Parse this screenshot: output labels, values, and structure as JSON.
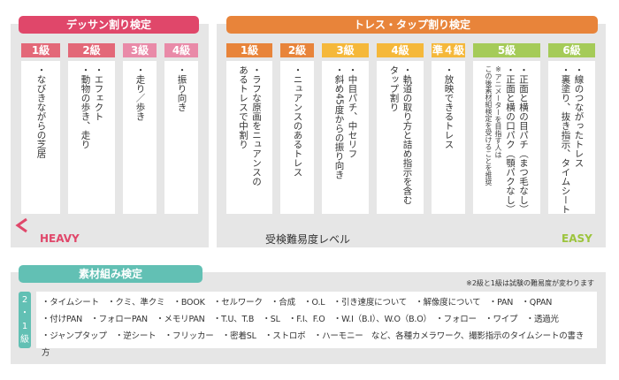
{
  "dessin": {
    "title": "デッサン割り検定",
    "color": "#e0476a",
    "levels": [
      {
        "label": "1級",
        "color": "#e36878",
        "lines": [
          "・なびきながらの芝居"
        ]
      },
      {
        "label": "2級",
        "color": "#e36878",
        "lines": [
          "・エフェクト",
          "・動物の歩き、走り"
        ]
      },
      {
        "label": "3級",
        "color": "#e98aa8",
        "lines": [
          "・走り／歩き"
        ]
      },
      {
        "label": "4級",
        "color": "#e98aa8",
        "lines": [
          "・振り向き"
        ]
      }
    ]
  },
  "trace": {
    "title": "トレス・タップ割り検定",
    "color": "#e8843a",
    "levels": [
      {
        "label": "1級",
        "color": "#e8843a",
        "lines": [
          "・ラフな原画をニュアンスの",
          "あるトレスで中割り"
        ]
      },
      {
        "label": "2級",
        "color": "#e8843a",
        "lines": [
          "・ニュアンスのあるトレス"
        ]
      },
      {
        "label": "3級",
        "color": "#f5b83a",
        "lines": [
          "・中目パチ、中セリフ",
          "・斜め45度からの振り向き"
        ]
      },
      {
        "label": "4級",
        "color": "#f5b83a",
        "lines": [
          "・軌道の取り方と詰め指示を含む",
          "タップ割り"
        ]
      },
      {
        "label": "準４級",
        "color": "#f5b83a",
        "lines": [
          "・放映できるトレス"
        ]
      },
      {
        "label": "5級",
        "color": "#a5cb58",
        "lines": [
          "・正面と横の目パチ（まつ毛なし）",
          "・正面と横の口パク（顎パクなし）"
        ],
        "note": [
          "※アニメーターを目指す人は",
          "この後素材組検定を受けることを推奨"
        ]
      },
      {
        "label": "6級",
        "color": "#a5cb58",
        "lines": [
          "・線のつながったトレス",
          "・裏塗り、抜き指示、タイムシート"
        ]
      }
    ]
  },
  "scale": {
    "heavy": "HEAVY",
    "easy": "EASY",
    "label": "受検難易度レベル",
    "heavy_color": "#e0476a",
    "easy_color": "#9cc43c"
  },
  "sozai": {
    "title": "素材組み検定",
    "color": "#62c0b4",
    "note": "※2級と1級は試験の難易度が変わります",
    "level_chars": [
      "2",
      "・",
      "1",
      "級"
    ],
    "lines": [
      "・タイムシート　・クミ、準クミ　・BOOK　・セルワーク　・合成　・O.L　・引き速度について　・解像度について　・PAN　・QPAN",
      "・付けPAN　・フォローPAN　・メモリPAN　・T.U、T.B　・SL　・F.I、F.O　・W.I（B.I）、W.O（B.O）　・フォロー　・ワイプ　・透過光",
      "・ジャンプタップ　・逆シート　・フリッカー　・密着SL　・ストロボ　・ハーモニー　など、各種カメラワーク、撮影指示のタイムシートの書き方"
    ]
  }
}
